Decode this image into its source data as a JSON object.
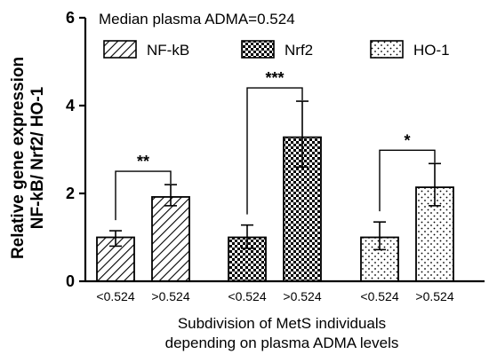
{
  "chart_data": {
    "type": "bar",
    "annotation": "Median plasma ADMA=0.524",
    "ylabel_line1": "Relative gene expression",
    "ylabel_line2": "NF-kB/ Nrf2/ HO-1",
    "xlabel_line1": "Subdivision of MetS individuals",
    "xlabel_line2": "depending on plasma ADMA levels",
    "ylim": [
      0,
      6
    ],
    "yticks": [
      "0",
      "2",
      "4",
      "6"
    ],
    "ytick_values": [
      0,
      2,
      4,
      6
    ],
    "legend_position": "top",
    "groups": [
      {
        "name": "NF-kB",
        "pattern": "diagonal",
        "bars": [
          {
            "label": "<0.524",
            "value": 1.0,
            "err_low": 0.8,
            "err_high": 1.15
          },
          {
            "label": ">0.524",
            "value": 1.92,
            "err_low": 1.72,
            "err_high": 2.2
          }
        ],
        "significance": "**"
      },
      {
        "name": "Nrf2",
        "pattern": "checker",
        "bars": [
          {
            "label": "<0.524",
            "value": 1.0,
            "err_low": 0.75,
            "err_high": 1.28
          },
          {
            "label": ">0.524",
            "value": 3.28,
            "err_low": 2.6,
            "err_high": 4.1
          }
        ],
        "significance": "***"
      },
      {
        "name": "HO-1",
        "pattern": "dots",
        "bars": [
          {
            "label": "<0.524",
            "value": 1.0,
            "err_low": 0.72,
            "err_high": 1.35
          },
          {
            "label": ">0.524",
            "value": 2.14,
            "err_low": 1.72,
            "err_high": 2.68
          }
        ],
        "significance": "*"
      }
    ]
  }
}
